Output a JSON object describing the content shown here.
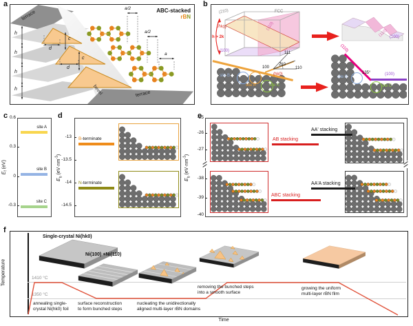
{
  "figure": {
    "panel_a": {
      "key": "a",
      "title": "ABC-stacked",
      "rbn_r": "r",
      "rbn_b": "B",
      "rbn_n": "N",
      "terrace_top": "terrace",
      "terrace_bottom": "terrace",
      "bevel": "bevel",
      "h": "h",
      "d": "d",
      "c": "c",
      "a_half": "a/2",
      "a_lat": "a"
    },
    "panel_b": {
      "key": "b",
      "plane_210": "(210)",
      "fcc": "FCC",
      "plane_hk0": "(hk0)",
      "plane_110": "(110)",
      "plane_100": "(100)",
      "h2k": "h > 2k",
      "dir_111": "111",
      "dir_210": "210",
      "dir_100": "100",
      "dir_110": "110",
      "hk0_surface": "(hk0)",
      "site_a": "site A",
      "site_b": "site B",
      "site_c": "site C",
      "facet_110": "(110)",
      "facet_100": "(100)",
      "angle": "135°"
    },
    "panel_c": {
      "key": "c",
      "ylabel": {
        "pre": "E",
        "sub": "f",
        "post": " (eV)"
      },
      "ticks": [
        "0.6",
        "0.3",
        "0",
        "-0.3"
      ],
      "sites": [
        {
          "label": "site A"
        },
        {
          "label": "site B"
        },
        {
          "label": "site C"
        }
      ]
    },
    "panel_d": {
      "key": "d",
      "ylabel": {
        "pre": "E",
        "sub": "b",
        "post": " (eV·nm",
        "sup": "-1",
        "end": ")"
      },
      "ticks": [
        "-13",
        "-13.5",
        "-14",
        "-14.5"
      ],
      "series": [
        {
          "prefix": "B",
          "rest": "-terminate"
        },
        {
          "prefix": "N",
          "rest": "-terminate"
        }
      ]
    },
    "panel_e": {
      "key": "e",
      "ylabel": {
        "pre": "E",
        "sub": "b",
        "post": " (eV·nm",
        "sup": "-1",
        "end": ")"
      },
      "ticks_upper": [
        "-25",
        "-26",
        "-27"
      ],
      "ticks_lower": [
        "-38",
        "-39",
        "-40"
      ],
      "entries": [
        {
          "label": "AB stacking"
        },
        {
          "label": "AA' stacking"
        },
        {
          "label": "ABC stacking"
        },
        {
          "label": "AA'A stacking"
        }
      ]
    },
    "panel_f": {
      "key": "f",
      "title_1": "Single-crystal Ni(hk0)",
      "title_2": "Ni(100) +Ni(110)",
      "temp_high": "1410 °C",
      "temp_low": "1350 °C",
      "xlabel": "Time",
      "ylabel": "Temperature",
      "captions": [
        {
          "line1": "annealing single-",
          "line2": "crystal Ni(hk0) foil"
        },
        {
          "line1": "surface reconstruction",
          "line2": "to form bunched steps"
        },
        {
          "line1": "nucleating the unidirectionally",
          "line2": "aligned multi-layer rBN domains"
        },
        {
          "line1": "removing the bunched steps",
          "line2": "into a smooth surface"
        },
        {
          "line1": "growing the uniform",
          "line2": "multi-layer rBN film"
        }
      ]
    }
  },
  "colors": {
    "b_atom": "#e8891d",
    "n_atom": "#8a9a23",
    "ni_atom": "#6e6e6e",
    "red": "#e8211d",
    "magenta": "#e6007e",
    "purple": "#9b4fd0",
    "site_blue": "#87a9dc",
    "site_green": "#8cc63f",
    "site_orange": "#eda33c",
    "curve_red": "#e05038",
    "rbn_film": "#f6c8a2",
    "bar_site_a": "#f8d64e",
    "bar_site_b": "#94b3e4",
    "bar_site_c": "#a6d48c",
    "bar_b_term": "#ef8c1a",
    "bar_n_term": "#8f8a16"
  },
  "chart_data": [
    {
      "id": "c",
      "type": "bar",
      "categories": [
        "site A",
        "site B",
        "site C"
      ],
      "values": [
        0.46,
        0.03,
        -0.3
      ],
      "ylabel": "Ef (eV)",
      "ylim": [
        -0.45,
        0.6
      ],
      "yticks": [
        0.6,
        0.3,
        0,
        -0.3
      ],
      "colors": [
        "#f8d64e",
        "#94b3e4",
        "#a6d48c"
      ]
    },
    {
      "id": "d",
      "type": "bar",
      "categories": [
        "B-terminate",
        "N-terminate"
      ],
      "values": [
        -13.1,
        -14.1
      ],
      "ylabel": "Eb (eV·nm-1)",
      "ylim": [
        -14.75,
        -12.75
      ],
      "yticks": [
        -13,
        -13.5,
        -14,
        -14.5
      ],
      "colors": [
        "#ef8c1a",
        "#8f8a16"
      ]
    },
    {
      "id": "e",
      "type": "bar",
      "categories": [
        "AB stacking",
        "AA' stacking",
        "ABC stacking",
        "AA'A stacking"
      ],
      "values": [
        -26.6,
        -26.1,
        -39.0,
        -38.5
      ],
      "ylabel": "Eb (eV·nm-1)",
      "yticks": [
        -25,
        -26,
        -27,
        -38,
        -39,
        -40
      ],
      "axis_break": [
        -27.5,
        -37.5
      ],
      "colors": [
        "#d81e1e",
        "#222222",
        "#d81e1e",
        "#222222"
      ]
    },
    {
      "id": "f",
      "type": "line",
      "xlabel": "Time",
      "ylabel": "Temperature",
      "temp_levels_C": [
        1410,
        1350
      ],
      "profile": [
        {
          "stage": "annealing single-crystal Ni(hk0) foil",
          "temp_C": 1410
        },
        {
          "stage": "surface reconstruction to form bunched steps",
          "temp_C": 1350
        },
        {
          "stage": "nucleating the unidirectionally aligned multi-layer rBN domains",
          "temp_C": 1350
        },
        {
          "stage": "removing the bunched steps into a smooth surface",
          "temp_C": 1410
        },
        {
          "stage": "growing the uniform multi-layer rBN film",
          "temp_C": 1410
        }
      ]
    }
  ]
}
